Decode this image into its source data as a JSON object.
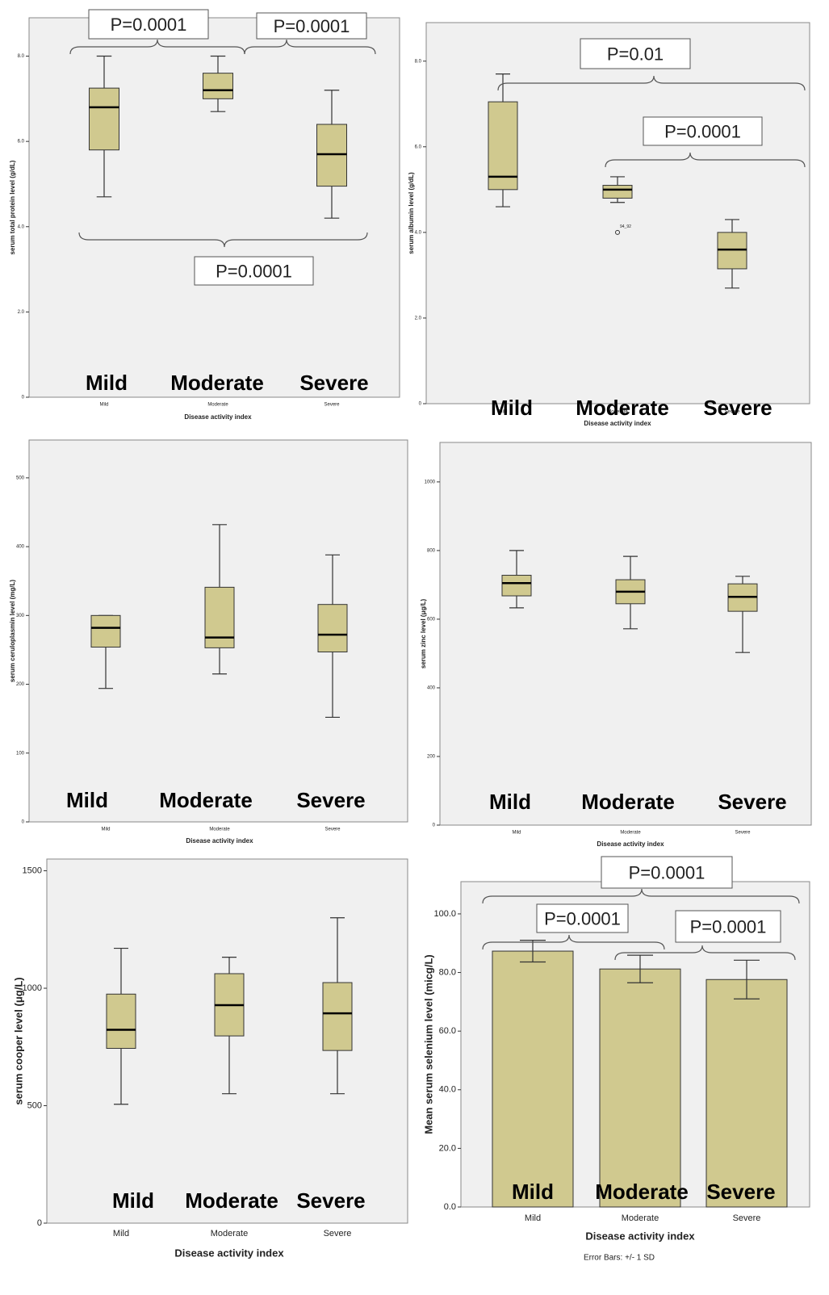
{
  "chart_data": [
    {
      "type": "box",
      "y_label": "serum total protein level (g/dL)",
      "x_label": "Disease activity index",
      "categories": [
        "Mild",
        "Moderate",
        "Severe"
      ],
      "category_labels": [
        "Mild",
        "Moderate",
        "Severe"
      ],
      "color": "#d0c98f",
      "ylim": [
        0,
        8.9
      ],
      "yticks": [
        0,
        {
          "value": 2,
          "label": "2.0"
        },
        {
          "value": 4,
          "label": "4.0"
        },
        {
          "value": 6,
          "label": "6.0"
        },
        {
          "value": 8,
          "label": "8.0"
        }
      ],
      "boxes": [
        {
          "min": 4.7,
          "q1": 5.8,
          "median": 6.8,
          "q3": 7.25,
          "max": 8.0
        },
        {
          "min": 6.7,
          "q1": 7.0,
          "median": 7.2,
          "q3": 7.6,
          "max": 8.0
        },
        {
          "min": 4.2,
          "q1": 4.95,
          "median": 5.7,
          "q3": 6.4,
          "max": 7.2
        }
      ],
      "annotations": [
        "P=0.0001",
        "P=0.0001",
        "P=0.0001"
      ]
    },
    {
      "type": "box",
      "y_label": "serum albumin level (g/dL)",
      "x_label": "Disease activity index",
      "categories": [
        "Mild",
        "Moderate",
        "Severe"
      ],
      "category_labels": [
        "Mild",
        "Moderate",
        "Severe"
      ],
      "color": "#d0c98f",
      "ylim": [
        0,
        8.9
      ],
      "yticks": [
        0,
        {
          "value": 2,
          "label": "2.0"
        },
        {
          "value": 4,
          "label": "4.0"
        },
        {
          "value": 6,
          "label": "6.0"
        },
        {
          "value": 8,
          "label": "8.0"
        }
      ],
      "boxes": [
        {
          "min": 4.6,
          "q1": 5.0,
          "median": 5.3,
          "q3": 7.05,
          "max": 7.7
        },
        {
          "min": 4.7,
          "q1": 4.8,
          "median": 5.0,
          "q3": 5.1,
          "max": 5.3,
          "outliers": [
            4.0
          ],
          "outlier_labels": [
            "94_92"
          ]
        },
        {
          "min": 2.7,
          "q1": 3.15,
          "median": 3.6,
          "q3": 4.0,
          "max": 4.3
        }
      ],
      "annotations": [
        "P=0.01",
        "P=0.0001"
      ]
    },
    {
      "type": "box",
      "y_label": "serum ceruloplasmin level (mg/L)",
      "x_label": "Disease activity index",
      "categories": [
        "Mild",
        "Moderate",
        "Severe"
      ],
      "category_labels": [
        "Mild",
        "Moderate",
        "Severe"
      ],
      "color": "#d0c98f",
      "ylim": [
        0,
        555
      ],
      "yticks": [
        0,
        100,
        200,
        300,
        400,
        500
      ],
      "boxes": [
        {
          "min": 194,
          "q1": 254,
          "median": 282,
          "q3": 300,
          "max": 300
        },
        {
          "min": 215,
          "q1": 253,
          "median": 268,
          "q3": 341,
          "max": 432
        },
        {
          "min": 152,
          "q1": 247,
          "median": 272,
          "q3": 316,
          "max": 388
        }
      ],
      "annotations": []
    },
    {
      "type": "box",
      "y_label": "serum zinc level (μg/L)",
      "x_label": "Disease activity index",
      "categories": [
        "Mild",
        "Moderate",
        "Severe"
      ],
      "category_labels": [
        "Mild",
        "Moderate",
        "Severe"
      ],
      "color": "#d0c98f",
      "ylim": [
        0,
        1115
      ],
      "yticks": [
        0,
        200,
        400,
        600,
        800,
        1000
      ],
      "boxes": [
        {
          "min": 633,
          "q1": 668,
          "median": 705,
          "q3": 728,
          "max": 800
        },
        {
          "min": 572,
          "q1": 645,
          "median": 680,
          "q3": 715,
          "max": 783
        },
        {
          "min": 503,
          "q1": 623,
          "median": 665,
          "q3": 703,
          "max": 725
        }
      ],
      "annotations": []
    },
    {
      "type": "box",
      "y_label": "serum cooper level (μg/L)",
      "x_label": "Disease activity index",
      "categories": [
        "Mild",
        "Moderate",
        "Severe"
      ],
      "category_labels": [
        "Mild",
        "Moderate",
        "Severe"
      ],
      "color": "#d0c98f",
      "ylim": [
        0,
        1550
      ],
      "yticks": [
        0,
        500,
        1000,
        1500
      ],
      "boxes": [
        {
          "min": 506,
          "q1": 744,
          "median": 823,
          "q3": 975,
          "max": 1170
        },
        {
          "min": 551,
          "q1": 797,
          "median": 928,
          "q3": 1062,
          "max": 1132
        },
        {
          "min": 551,
          "q1": 735,
          "median": 893,
          "q3": 1024,
          "max": 1300
        }
      ],
      "annotations": []
    },
    {
      "type": "bar",
      "y_label": "Mean serum selenium level (micg/L)",
      "x_label": "Disease activity index",
      "categories": [
        "Mild",
        "Moderate",
        "Severe"
      ],
      "category_labels": [
        "Mild",
        "Moderate",
        "Severe"
      ],
      "color": "#d0c98f",
      "ylim": [
        0,
        111
      ],
      "yticks": [
        {
          "value": 0,
          "label": "0.0"
        },
        {
          "value": 20,
          "label": "20.0"
        },
        {
          "value": 40,
          "label": "40.0"
        },
        {
          "value": 60,
          "label": "60.0"
        },
        {
          "value": 80,
          "label": "80.0"
        },
        {
          "value": 100,
          "label": "100.0"
        }
      ],
      "values": [
        87.3,
        81.2,
        77.6
      ],
      "errors": [
        3.7,
        4.7,
        6.6
      ],
      "footnote": "Error Bars: +/- 1 SD",
      "annotations": [
        "P=0.0001",
        "P=0.0001",
        "P=0.0001"
      ]
    }
  ]
}
